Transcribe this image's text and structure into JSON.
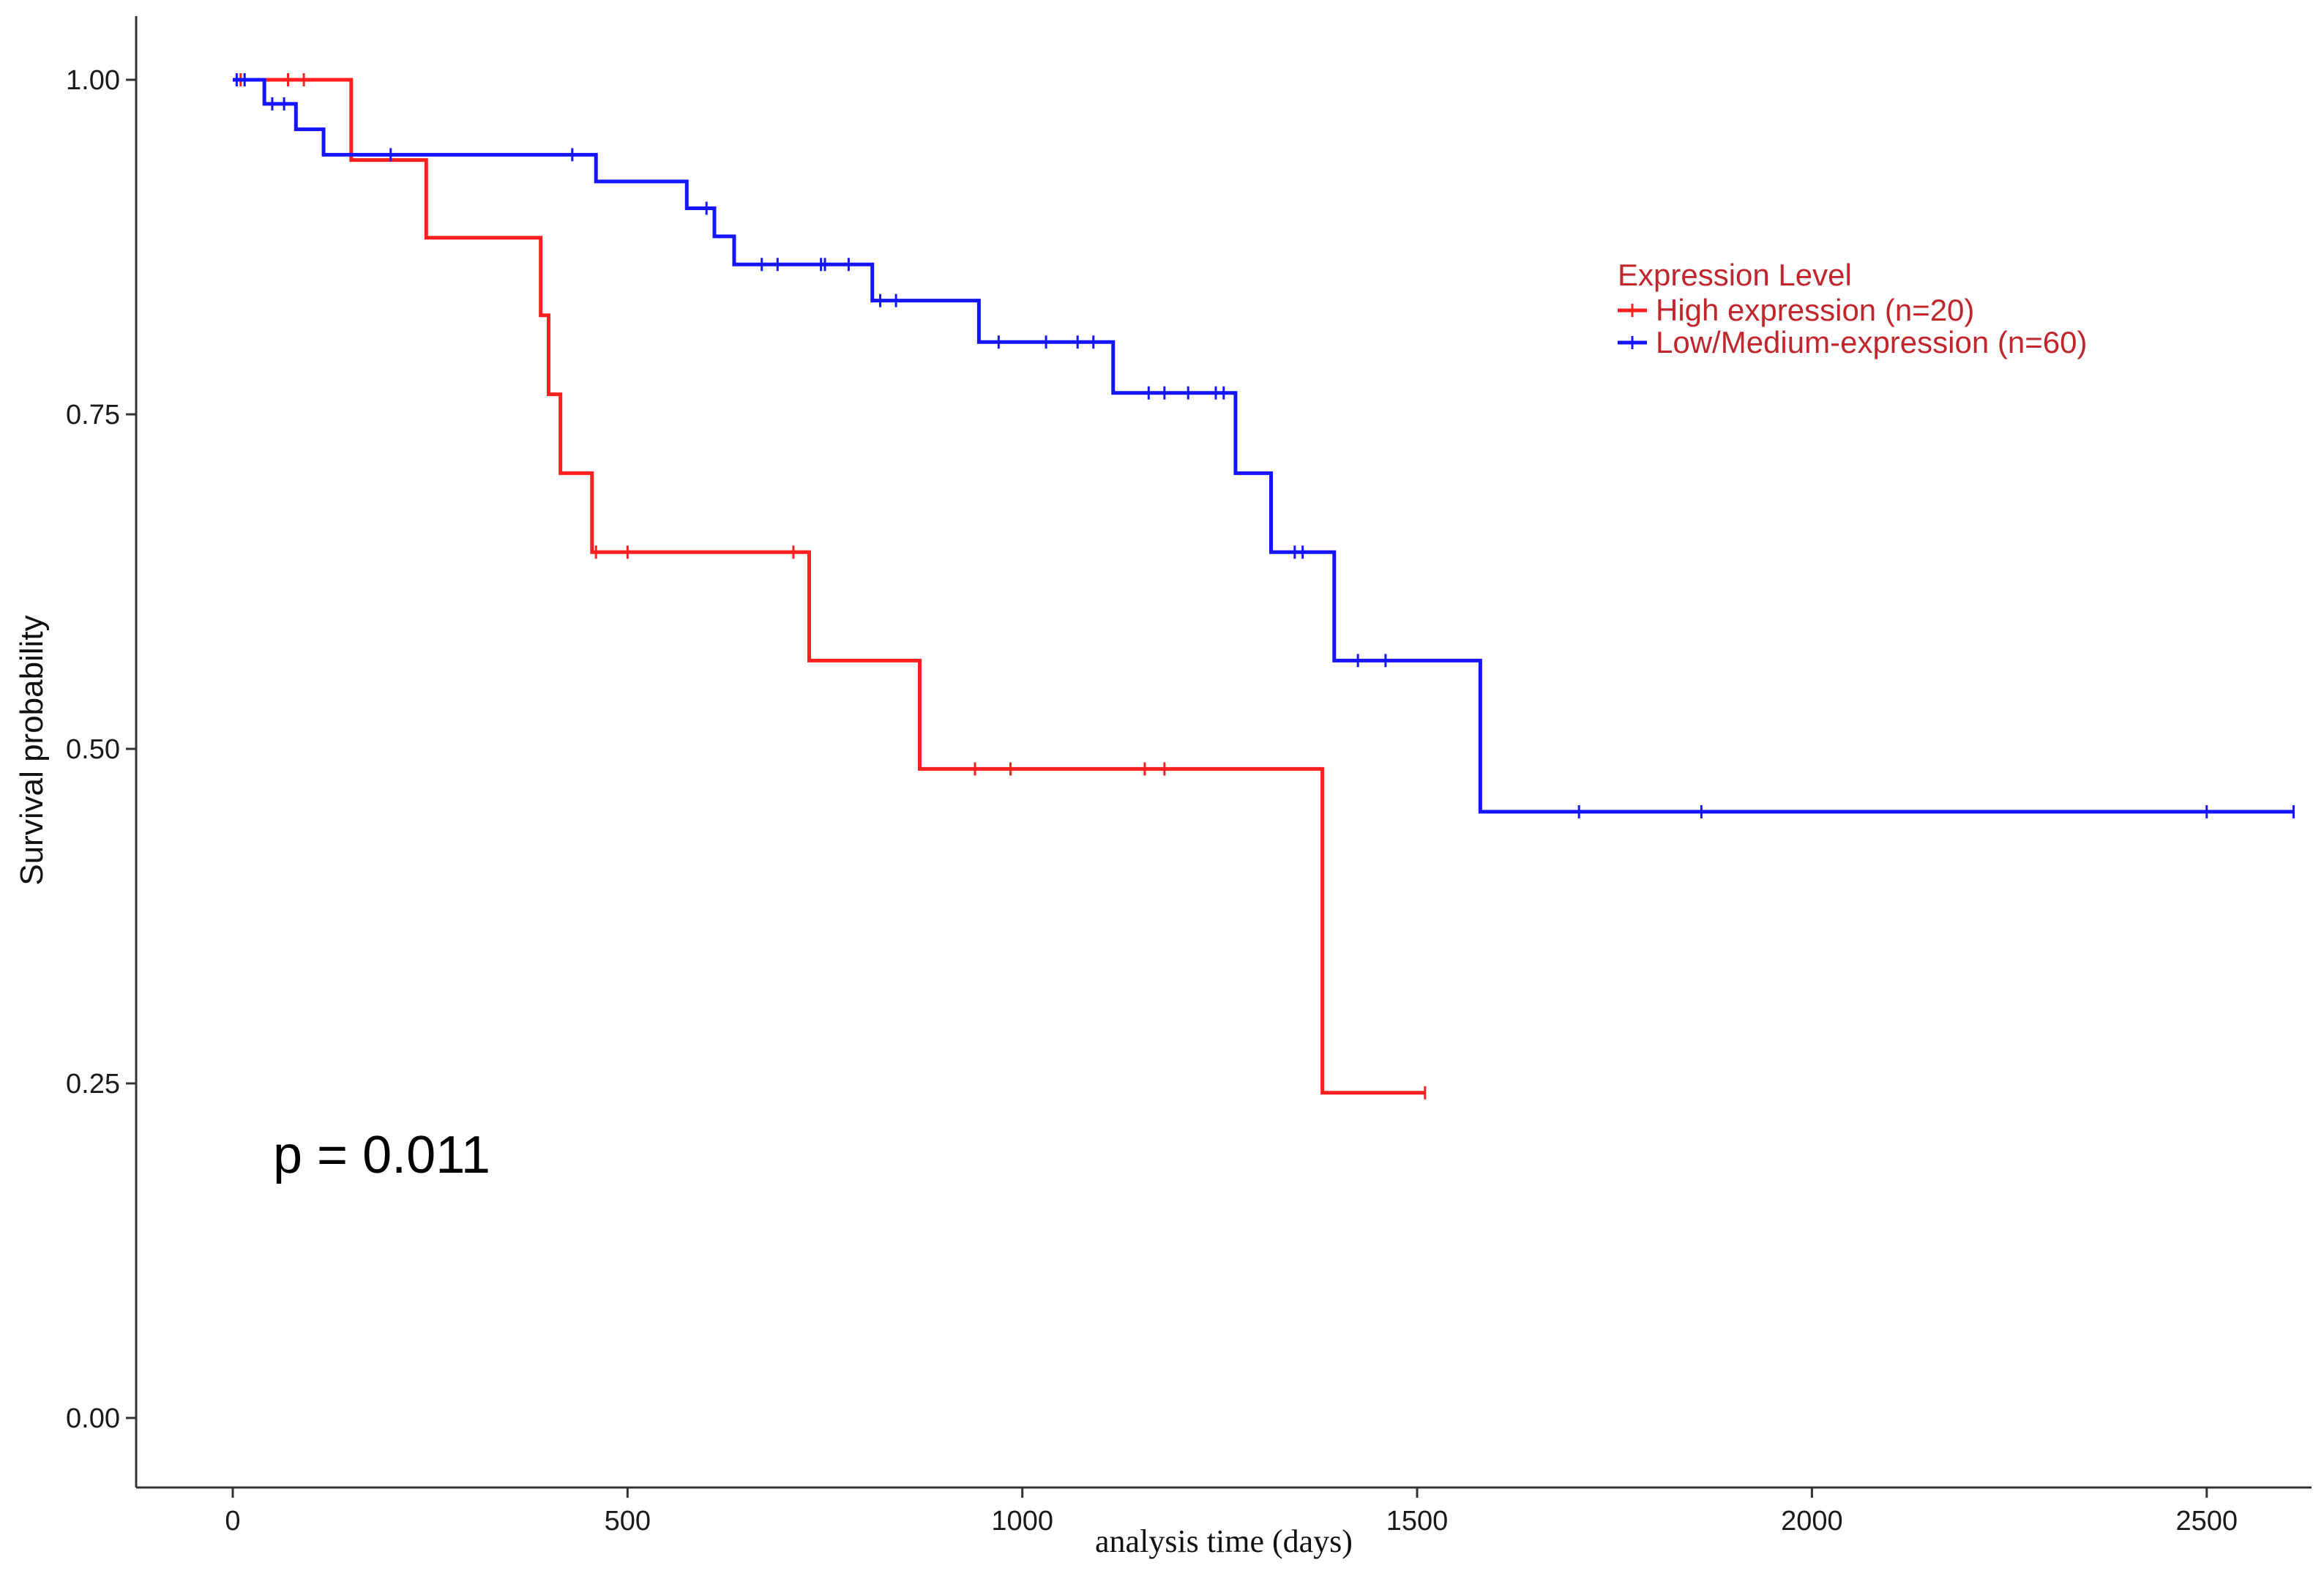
{
  "chart_data": {
    "type": "line",
    "subtype": "kaplan-meier-step",
    "xlabel": "analysis time (days)",
    "ylabel": "Survival probability",
    "xlim": [
      -120,
      2620
    ],
    "ylim": [
      -0.05,
      1.05
    ],
    "x_ticks": [
      0,
      500,
      1000,
      1500,
      2000,
      2500
    ],
    "x_tick_labels": [
      "0",
      "500",
      "1000",
      "1500",
      "2000",
      "2500"
    ],
    "y_ticks": [
      0,
      0.25,
      0.5,
      0.75,
      1.0
    ],
    "y_tick_labels": [
      "0.00",
      "0.25",
      "0.50",
      "0.75",
      "1.00"
    ],
    "grid": false,
    "legend": {
      "title": "Expression Level",
      "placement": "top-right",
      "title_color": "#c0262c",
      "text_color": "#c0262c"
    },
    "annotation": "p = 0.011",
    "series": [
      {
        "name": "High expression (n=20)",
        "color": "#ff1f1f",
        "steps": [
          [
            0,
            1.0
          ],
          [
            150,
            0.94
          ],
          [
            245,
            0.882
          ],
          [
            390,
            0.824
          ],
          [
            400,
            0.765
          ],
          [
            415,
            0.706
          ],
          [
            455,
            0.647
          ],
          [
            730,
            0.566
          ],
          [
            870,
            0.485
          ],
          [
            1380,
            0.243
          ]
        ],
        "end": 1510,
        "censored": [
          [
            10,
            1.0
          ],
          [
            70,
            1.0
          ],
          [
            90,
            1.0
          ],
          [
            460,
            0.647
          ],
          [
            500,
            0.647
          ],
          [
            710,
            0.647
          ],
          [
            940,
            0.485
          ],
          [
            985,
            0.485
          ],
          [
            1155,
            0.485
          ],
          [
            1180,
            0.485
          ],
          [
            1510,
            0.243
          ]
        ]
      },
      {
        "name": "Low/Medium-expression (n=60)",
        "color": "#1414ff",
        "steps": [
          [
            0,
            1.0
          ],
          [
            40,
            0.982
          ],
          [
            80,
            0.963
          ],
          [
            115,
            0.944
          ],
          [
            460,
            0.924
          ],
          [
            575,
            0.904
          ],
          [
            610,
            0.883
          ],
          [
            635,
            0.862
          ],
          [
            810,
            0.835
          ],
          [
            945,
            0.804
          ],
          [
            1115,
            0.766
          ],
          [
            1270,
            0.706
          ],
          [
            1315,
            0.647
          ],
          [
            1395,
            0.566
          ],
          [
            1580,
            0.453
          ]
        ],
        "end": 2610,
        "censored": [
          [
            5,
            1.0
          ],
          [
            15,
            1.0
          ],
          [
            50,
            0.982
          ],
          [
            65,
            0.982
          ],
          [
            200,
            0.944
          ],
          [
            430,
            0.944
          ],
          [
            600,
            0.904
          ],
          [
            670,
            0.862
          ],
          [
            690,
            0.862
          ],
          [
            745,
            0.862
          ],
          [
            750,
            0.862
          ],
          [
            780,
            0.862
          ],
          [
            820,
            0.835
          ],
          [
            840,
            0.835
          ],
          [
            970,
            0.804
          ],
          [
            1030,
            0.804
          ],
          [
            1070,
            0.804
          ],
          [
            1090,
            0.804
          ],
          [
            1160,
            0.766
          ],
          [
            1180,
            0.766
          ],
          [
            1210,
            0.766
          ],
          [
            1245,
            0.766
          ],
          [
            1255,
            0.766
          ],
          [
            1345,
            0.647
          ],
          [
            1355,
            0.647
          ],
          [
            1425,
            0.566
          ],
          [
            1460,
            0.566
          ],
          [
            1705,
            0.453
          ],
          [
            1860,
            0.453
          ],
          [
            2500,
            0.453
          ],
          [
            2610,
            0.453
          ]
        ]
      }
    ]
  }
}
